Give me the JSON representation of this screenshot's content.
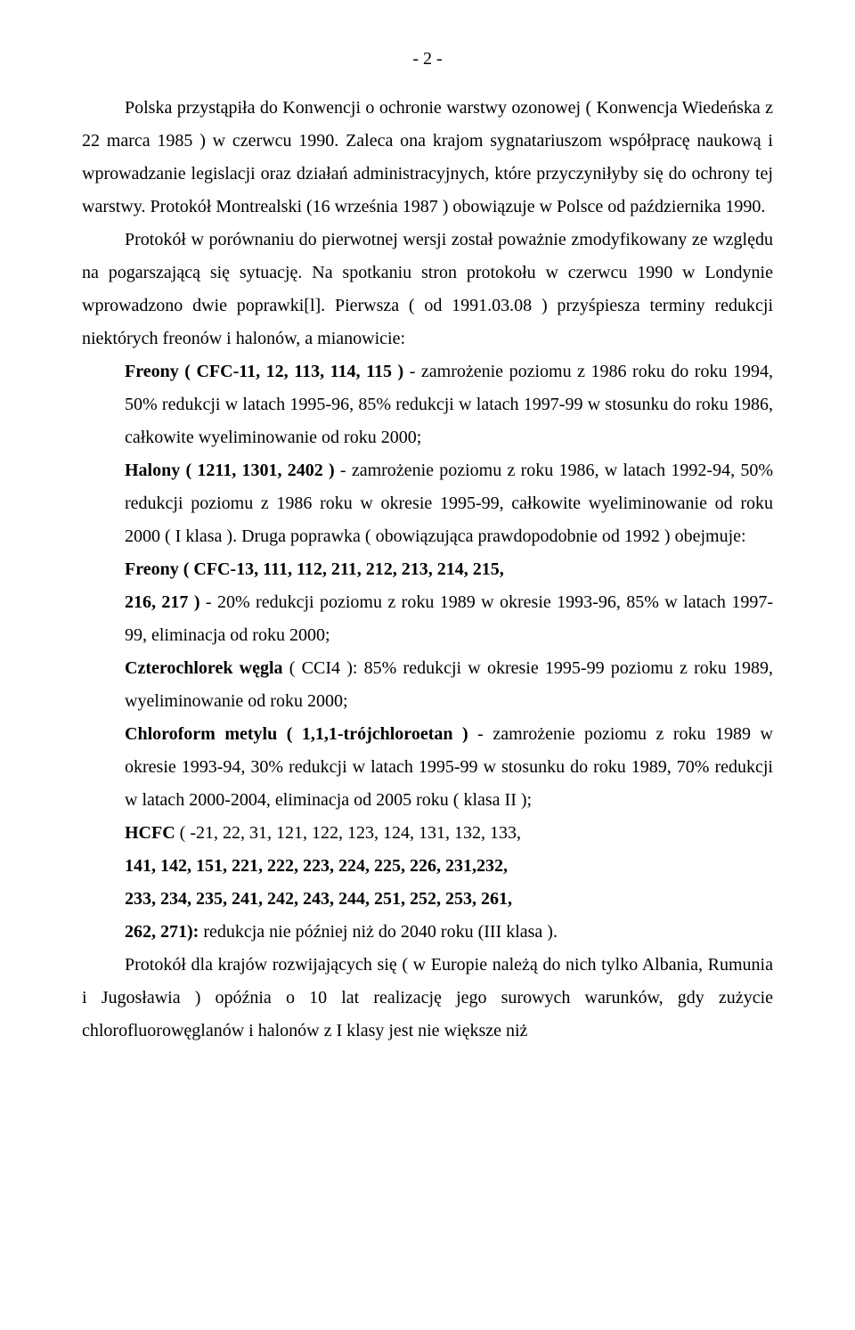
{
  "page_number": "- 2 -",
  "p1": "Polska przystąpiła do Konwencji o ochronie warstwy ozonowej ( Konwencja Wiedeńska z 22 marca 1985 ) w czerwcu 1990. Zaleca ona krajom sygnatariuszom współpracę naukową i wprowadzanie legislacji oraz działań administracyjnych, które przyczyniłyby się do ochrony tej warstwy. Protokół Montrealski (16 września 1987 ) obowiązuje w Polsce od października 1990.",
  "p2": "Protokół w porównaniu do pierwotnej wersji został poważnie zmodyfikowany ze względu na pogarszającą się sytuację. Na spotkaniu stron protokołu w czerwcu 1990 w Londynie wprowadzono dwie poprawki[l]. Pierwsza ( od 1991.03.08 ) przyśpiesza terminy redukcji niektórych freonów i halonów, a mianowicie:",
  "freony_label": "Freony ( CFC-11, 12, 113, 114, 115 )",
  "freony_rest": " - zamrożenie poziomu z 1986 roku do roku 1994, 50% redukcji w latach 1995-96, 85% redukcji w latach 1997-99 w stosunku do roku 1986, całkowite wyeliminowanie od roku 2000;",
  "halony_label": "Halony ( 1211, 1301, 2402 )",
  "halony_rest": " - zamrożenie poziomu z roku 1986, w latach 1992-94, 50% redukcji poziomu z 1986 roku w okresie 1995-99, całkowite wyeliminowanie od roku 2000 ( I klasa ). Druga poprawka ( obowiązująca prawdopodobnie od 1992 ) obejmuje:",
  "freony2_label": "Freony ( CFC-13, 111, 112, 211, 212, 213, 214, 215,",
  "freony2_line2": "216, 217 )",
  "freony2_rest": " - 20% redukcji poziomu z roku 1989 w okresie 1993-96, 85% w latach 1997-99, eliminacja od roku 2000;",
  "ccl4_label": "Czterochlorek węgla",
  "ccl4_paren": " ( CCI4 ): ",
  "ccl4_rest": "85% redukcji w okresie 1995-99 poziomu z roku 1989, wyeliminowanie od roku 2000;",
  "chloroform_label": "Chloroform metylu ( 1,1,1-trójchloroetan )",
  "chloroform_rest": " - zamrożenie poziomu z roku 1989 w okresie 1993-94, 30% redukcji w latach 1995-99 w stosunku do roku 1989, 70% redukcji w latach 2000-2004, eliminacja od 2005 roku ( klasa II );",
  "hcfc_label": "HCFC",
  "hcfc_rest1": " ( -21, 22, 31, 121, 122, 123, 124, 131, 132, 133,",
  "hcfc_line2": "141, 142, 151, 221, 222, 223, 224, 225, 226, 231,232,",
  "hcfc_line3": "233, 234, 235, 241, 242, 243, 244, 251, 252, 253, 261,",
  "hcfc_line4_bold": "262, 271):",
  "hcfc_line4_rest": " redukcja nie później niż do 2040 roku (III klasa ).",
  "p_albania": "Protokół dla krajów rozwijających się ( w Europie należą do nich tylko Albania, Rumunia i Jugosławia ) opóźnia o 10 lat realizację jego surowych warunków, gdy zużycie chlorofluorowęglanów i halonów z I klasy jest nie większe niż"
}
